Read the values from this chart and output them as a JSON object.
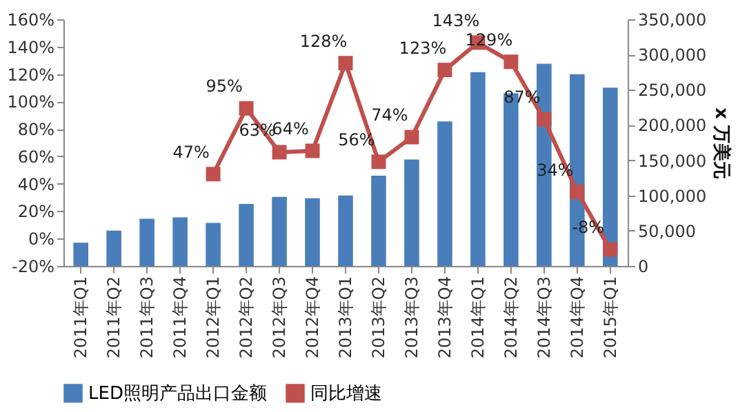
{
  "chart_data": {
    "type": "bar",
    "categories": [
      "2011年Q1",
      "2011年Q2",
      "2011年Q3",
      "2011年Q4",
      "2012年Q1",
      "2012年Q2",
      "2012年Q3",
      "2012年Q4",
      "2013年Q1",
      "2013年Q2",
      "2013年Q3",
      "2013年Q4",
      "2014年Q1",
      "2014年Q2",
      "2014年Q3",
      "2014年Q4",
      "2015年Q1"
    ],
    "y2label": "x 万美元",
    "ylim": [
      -20,
      160
    ],
    "yticks": [
      {
        "value": -20,
        "label": "-20%"
      },
      {
        "value": 0,
        "label": "0%"
      },
      {
        "value": 20,
        "label": "20%"
      },
      {
        "value": 40,
        "label": "40%"
      },
      {
        "value": 60,
        "label": "60%"
      },
      {
        "value": 80,
        "label": "80%"
      },
      {
        "value": 100,
        "label": "100%"
      },
      {
        "value": 120,
        "label": "120%"
      },
      {
        "value": 140,
        "label": "140%"
      },
      {
        "value": 160,
        "label": "160%"
      }
    ],
    "y2lim": [
      0,
      350000
    ],
    "y2ticks": [
      0,
      {
        "value": 50000,
        "label": "50,000"
      },
      {
        "value": 100000,
        "label": "100,000"
      },
      {
        "value": 150000,
        "label": "150,000"
      },
      {
        "value": 200000,
        "label": "200,000"
      },
      {
        "value": 250000,
        "label": "250,000"
      },
      {
        "value": 300000,
        "label": "300,000"
      },
      {
        "value": 350000,
        "label": "350,000"
      }
    ],
    "series": [
      {
        "name": "LED照明产品出口金额",
        "axis": "y2",
        "color": "#4a7ebb",
        "values": [
          33000,
          50000,
          67000,
          69000,
          61000,
          88000,
          98000,
          96000,
          100000,
          128000,
          151000,
          205000,
          275000,
          245000,
          287000,
          272000,
          253000
        ]
      },
      {
        "name": "同比增速",
        "type": "line",
        "axis": "y",
        "color": "#c0504d",
        "marker": "square",
        "values": [
          null,
          null,
          null,
          null,
          47,
          95,
          63,
          64,
          128,
          56,
          74,
          123,
          143,
          129,
          87,
          34,
          -8
        ],
        "value_labels": [
          null,
          null,
          null,
          null,
          "47%",
          "95%",
          "63%",
          "64%",
          "128%",
          "56%",
          "74%",
          "123%",
          "143%",
          "129%",
          "87%",
          "34%",
          "-8%"
        ]
      }
    ],
    "grid": false,
    "legend": "bottom"
  }
}
